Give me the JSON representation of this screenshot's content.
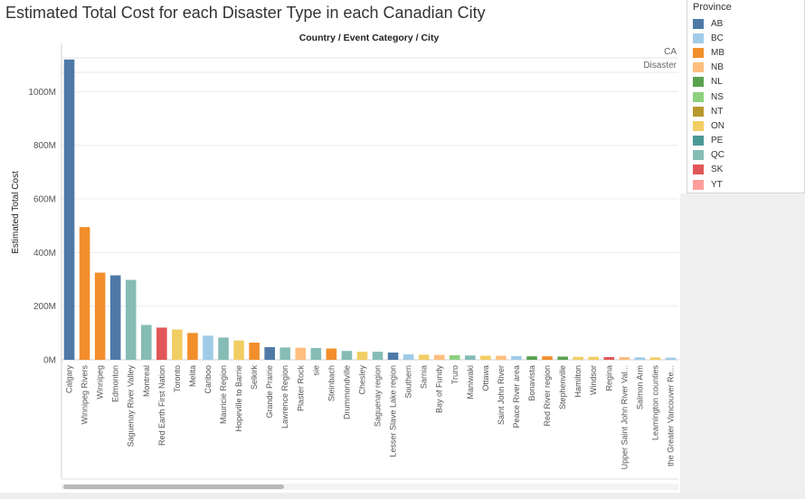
{
  "title": "Estimated Total Cost for each Disaster Type in each Canadian City",
  "header": {
    "label": "Country / Event Category / City",
    "pane_country": "CA",
    "pane_category": "Disaster"
  },
  "legend": {
    "title": "Province",
    "items": [
      {
        "label": "AB",
        "color": "#4e79a7"
      },
      {
        "label": "BC",
        "color": "#a0cbe8"
      },
      {
        "label": "MB",
        "color": "#f28e2b"
      },
      {
        "label": "NB",
        "color": "#ffbe7d"
      },
      {
        "label": "NL",
        "color": "#59a14f"
      },
      {
        "label": "NS",
        "color": "#8cd17d"
      },
      {
        "label": "NT",
        "color": "#b6992d"
      },
      {
        "label": "ON",
        "color": "#f1ce63"
      },
      {
        "label": "PE",
        "color": "#499894"
      },
      {
        "label": "QC",
        "color": "#86bcb6"
      },
      {
        "label": "SK",
        "color": "#e15759"
      },
      {
        "label": "YT",
        "color": "#ff9d9a"
      }
    ]
  },
  "chart_data": {
    "type": "bar",
    "title": "Estimated Total Cost for each Disaster Type in each Canadian City",
    "ylabel": "Estimated Total Cost",
    "ylim": [
      0,
      1180000000
    ],
    "yticks": [
      {
        "value": 0,
        "label": "0M"
      },
      {
        "value": 200000000,
        "label": "200M"
      },
      {
        "value": 400000000,
        "label": "400M"
      },
      {
        "value": 600000000,
        "label": "600M"
      },
      {
        "value": 800000000,
        "label": "800M"
      },
      {
        "value": 1000000000,
        "label": "1000M"
      }
    ],
    "grid": true,
    "legend_position": "top-right",
    "bars": [
      {
        "city": "Calgary",
        "province": "AB",
        "value": 1120000000
      },
      {
        "city": "Winnipeg Rivers",
        "province": "MB",
        "value": 495000000
      },
      {
        "city": "Winnipeg",
        "province": "MB",
        "value": 325000000
      },
      {
        "city": "Edmonton",
        "province": "AB",
        "value": 315000000
      },
      {
        "city": "Saguenay River Valley",
        "province": "QC",
        "value": 298000000
      },
      {
        "city": "Montreal",
        "province": "QC",
        "value": 130000000
      },
      {
        "city": "Red Earth First Nation",
        "province": "SK",
        "value": 120000000
      },
      {
        "city": "Toronto",
        "province": "ON",
        "value": 113000000
      },
      {
        "city": "Melita",
        "province": "MB",
        "value": 100000000
      },
      {
        "city": "Cariboo",
        "province": "BC",
        "value": 90000000
      },
      {
        "city": "Mauricie Region",
        "province": "QC",
        "value": 83000000
      },
      {
        "city": "Hopeville to Barrie",
        "province": "ON",
        "value": 72000000
      },
      {
        "city": "Selkirk",
        "province": "MB",
        "value": 64000000
      },
      {
        "city": "Grande Prairie",
        "province": "AB",
        "value": 47000000
      },
      {
        "city": "Lawrence Region",
        "province": "QC",
        "value": 46000000
      },
      {
        "city": "Plaster Rock",
        "province": "NB",
        "value": 45000000
      },
      {
        "city": "sie",
        "province": "QC",
        "value": 44000000
      },
      {
        "city": "Steinbach",
        "province": "MB",
        "value": 42000000
      },
      {
        "city": "Drummondville",
        "province": "QC",
        "value": 33000000
      },
      {
        "city": "Chesley",
        "province": "ON",
        "value": 30000000
      },
      {
        "city": "Saguenay region",
        "province": "QC",
        "value": 30000000
      },
      {
        "city": "Lesser Slave Lake region",
        "province": "AB",
        "value": 27000000
      },
      {
        "city": "Southern",
        "province": "BC",
        "value": 20000000
      },
      {
        "city": "Sarnia",
        "province": "ON",
        "value": 19000000
      },
      {
        "city": "Bay of Fundy",
        "province": "NB",
        "value": 18000000
      },
      {
        "city": "Truro",
        "province": "NS",
        "value": 17000000
      },
      {
        "city": "Maniwaki",
        "province": "QC",
        "value": 16000000
      },
      {
        "city": "Ottawa",
        "province": "ON",
        "value": 15000000
      },
      {
        "city": "Saint John River",
        "province": "NB",
        "value": 15000000
      },
      {
        "city": "Peace River area",
        "province": "BC",
        "value": 14000000
      },
      {
        "city": "Bonavista",
        "province": "NL",
        "value": 13000000
      },
      {
        "city": "Red River region",
        "province": "MB",
        "value": 13000000
      },
      {
        "city": "Stephenville",
        "province": "NL",
        "value": 12000000
      },
      {
        "city": "Hamilton",
        "province": "ON",
        "value": 11000000
      },
      {
        "city": "Windsor",
        "province": "ON",
        "value": 11000000
      },
      {
        "city": "Regina",
        "province": "SK",
        "value": 10000000
      },
      {
        "city": "Upper Saint John River Val...",
        "province": "NB",
        "value": 10000000
      },
      {
        "city": "Salmon Arm",
        "province": "BC",
        "value": 9000000
      },
      {
        "city": "Leamington counties",
        "province": "ON",
        "value": 9000000
      },
      {
        "city": "the Greater Vancouver Re...",
        "province": "BC",
        "value": 8000000
      }
    ]
  }
}
